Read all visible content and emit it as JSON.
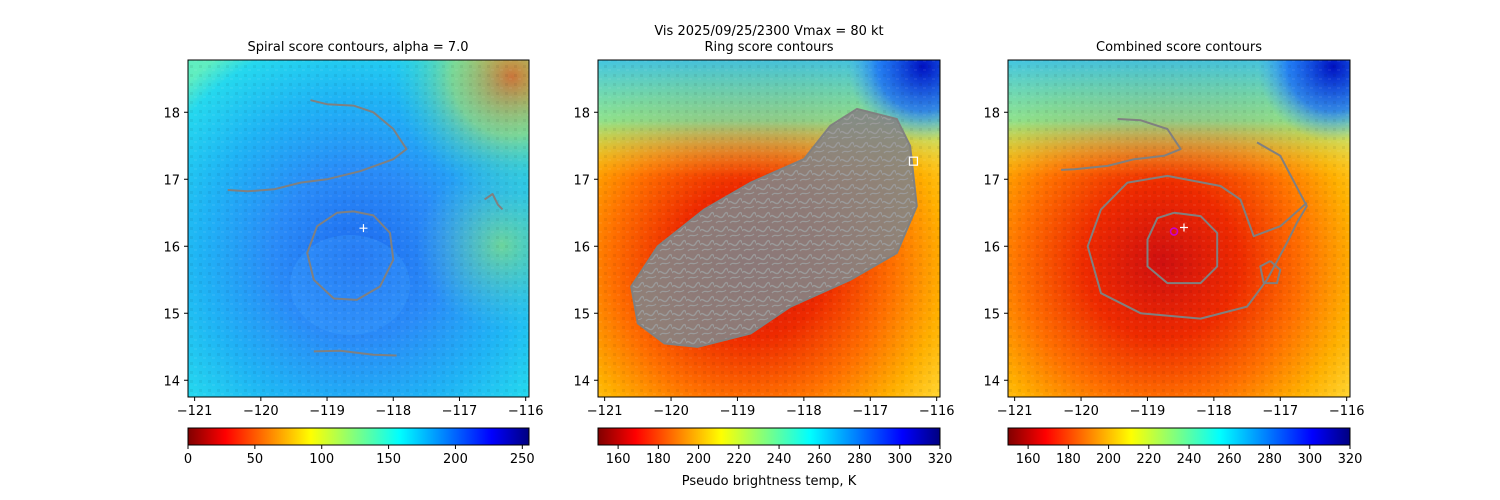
{
  "figure": {
    "title_line1": "Vis  2025/09/25/2300    Vmax = 80 kt",
    "colorbar_label": "Pseudo brightness temp, K"
  },
  "chart_data": [
    {
      "type": "heatmap",
      "title": "Spiral score contours, alpha =  7.0",
      "colormap": "jet",
      "x_ticks": [
        -121,
        -120,
        -119,
        -118,
        -117,
        -116
      ],
      "y_ticks": [
        14,
        15,
        16,
        17,
        18
      ],
      "xlim": [
        -121.1,
        -115.95
      ],
      "ylim": [
        13.75,
        18.78
      ],
      "colorbar": {
        "range": [
          0,
          255
        ],
        "ticks": [
          0,
          50,
          100,
          150,
          200,
          250
        ]
      },
      "markers": [
        {
          "type": "plus",
          "lon": -118.45,
          "lat": 16.27,
          "color": "#ffffff"
        }
      ],
      "contours": [
        [
          [
            -119.25,
            18.18
          ],
          [
            -119.0,
            18.12
          ],
          [
            -118.6,
            18.1
          ],
          [
            -118.3,
            18.0
          ],
          [
            -118.0,
            17.75
          ],
          [
            -117.8,
            17.45
          ],
          [
            -118.0,
            17.3
          ],
          [
            -118.5,
            17.12
          ],
          [
            -119.0,
            17.0
          ],
          [
            -119.4,
            16.95
          ],
          [
            -119.8,
            16.85
          ],
          [
            -120.2,
            16.82
          ],
          [
            -120.5,
            16.84
          ]
        ],
        [
          [
            -118.6,
            16.52
          ],
          [
            -118.3,
            16.46
          ],
          [
            -118.05,
            16.2
          ],
          [
            -118.0,
            15.8
          ],
          [
            -118.2,
            15.4
          ],
          [
            -118.55,
            15.2
          ],
          [
            -118.9,
            15.22
          ],
          [
            -119.2,
            15.5
          ],
          [
            -119.3,
            15.9
          ],
          [
            -119.15,
            16.3
          ],
          [
            -118.85,
            16.5
          ],
          [
            -118.6,
            16.52
          ]
        ],
        [
          [
            -119.2,
            14.43
          ],
          [
            -118.8,
            14.44
          ],
          [
            -118.3,
            14.38
          ],
          [
            -117.95,
            14.37
          ]
        ],
        [
          [
            -116.62,
            16.7
          ],
          [
            -116.5,
            16.78
          ],
          [
            -116.42,
            16.62
          ],
          [
            -116.35,
            16.55
          ]
        ]
      ]
    },
    {
      "type": "heatmap",
      "title": "Ring score contours",
      "colormap": "jet",
      "x_ticks": [
        -121,
        -120,
        -119,
        -118,
        -117,
        -116
      ],
      "y_ticks": [
        14,
        15,
        16,
        17,
        18
      ],
      "xlim": [
        -121.1,
        -115.95
      ],
      "ylim": [
        13.75,
        18.78
      ],
      "colorbar": {
        "range": [
          150,
          320
        ],
        "ticks": [
          160,
          180,
          200,
          220,
          240,
          260,
          280,
          300,
          320
        ]
      },
      "markers": [
        {
          "type": "square",
          "lon": -116.35,
          "lat": 17.27,
          "color": "#ffffff"
        }
      ],
      "contour_region": [
        [
          -120.6,
          15.4
        ],
        [
          -120.2,
          16.0
        ],
        [
          -119.5,
          16.55
        ],
        [
          -118.8,
          16.95
        ],
        [
          -118.0,
          17.3
        ],
        [
          -117.6,
          17.8
        ],
        [
          -117.2,
          18.05
        ],
        [
          -116.6,
          17.9
        ],
        [
          -116.4,
          17.5
        ],
        [
          -116.3,
          16.6
        ],
        [
          -116.6,
          15.9
        ],
        [
          -117.3,
          15.5
        ],
        [
          -118.2,
          15.1
        ],
        [
          -118.8,
          14.7
        ],
        [
          -119.6,
          14.5
        ],
        [
          -120.1,
          14.55
        ],
        [
          -120.5,
          14.85
        ],
        [
          -120.6,
          15.4
        ]
      ]
    },
    {
      "type": "heatmap",
      "title": "Combined score contours",
      "colormap": "jet",
      "x_ticks": [
        -121,
        -120,
        -119,
        -118,
        -117,
        -116
      ],
      "y_ticks": [
        14,
        15,
        16,
        17,
        18
      ],
      "xlim": [
        -121.1,
        -115.95
      ],
      "ylim": [
        13.75,
        18.78
      ],
      "colorbar": {
        "range": [
          150,
          320
        ],
        "ticks": [
          160,
          180,
          200,
          220,
          240,
          260,
          280,
          300,
          320
        ]
      },
      "markers": [
        {
          "type": "circle",
          "lon": -118.6,
          "lat": 16.22,
          "color": "#cc00cc"
        },
        {
          "type": "plus",
          "lon": -118.45,
          "lat": 16.28,
          "color": "#ffffff"
        }
      ],
      "contours": [
        [
          [
            -119.45,
            17.9
          ],
          [
            -119.1,
            17.88
          ],
          [
            -118.7,
            17.75
          ],
          [
            -118.5,
            17.45
          ],
          [
            -118.75,
            17.35
          ],
          [
            -119.2,
            17.3
          ],
          [
            -119.6,
            17.2
          ],
          [
            -120.1,
            17.15
          ],
          [
            -120.3,
            17.14
          ]
        ],
        [
          [
            -118.6,
            16.5
          ],
          [
            -118.2,
            16.45
          ],
          [
            -117.95,
            16.2
          ],
          [
            -117.95,
            15.7
          ],
          [
            -118.2,
            15.45
          ],
          [
            -118.7,
            15.45
          ],
          [
            -119.0,
            15.7
          ],
          [
            -119.0,
            16.1
          ],
          [
            -118.85,
            16.42
          ],
          [
            -118.6,
            16.5
          ]
        ],
        [
          [
            -116.6,
            16.65
          ],
          [
            -117.0,
            16.3
          ],
          [
            -117.4,
            16.15
          ],
          [
            -117.6,
            16.7
          ],
          [
            -117.9,
            16.9
          ],
          [
            -118.7,
            17.05
          ],
          [
            -119.3,
            16.95
          ],
          [
            -119.7,
            16.55
          ],
          [
            -119.9,
            16.0
          ],
          [
            -119.7,
            15.3
          ],
          [
            -119.1,
            15.0
          ],
          [
            -118.2,
            14.92
          ],
          [
            -117.5,
            15.1
          ],
          [
            -117.2,
            15.5
          ],
          [
            -116.9,
            16.05
          ],
          [
            -116.75,
            16.35
          ],
          [
            -116.6,
            16.6
          ],
          [
            -117.0,
            17.35
          ],
          [
            -117.35,
            17.55
          ]
        ],
        [
          [
            -117.15,
            15.78
          ],
          [
            -117.0,
            15.65
          ],
          [
            -117.05,
            15.45
          ],
          [
            -117.25,
            15.45
          ],
          [
            -117.3,
            15.7
          ],
          [
            -117.15,
            15.78
          ]
        ]
      ]
    }
  ]
}
